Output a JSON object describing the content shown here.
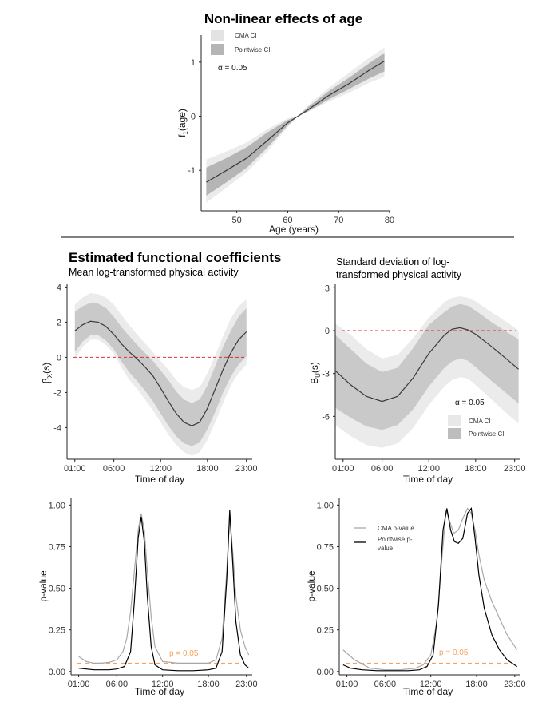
{
  "figure": {
    "main_title": "Non-linear effects of age",
    "section_title": "Estimated functional coefficients",
    "colors": {
      "cma_band": "#ebebeb",
      "pointwise_band": "#c9c9c9",
      "pointwise_band_top": "#b5b5b5",
      "estimate_line": "#3a3a3a",
      "zero_line": "#e03030",
      "alpha_line": "#f4a460",
      "cma_pvalue": "#a8a8a8",
      "pointwise_pvalue": "#000000"
    }
  },
  "chart_data": [
    {
      "id": "age",
      "type": "line",
      "title": "Non-linear effects of age",
      "xlabel": "Age (years)",
      "ylabel": "f1(age)",
      "ylabel_main": "f",
      "ylabel_sub": "1",
      "ylabel_rest": "(age)",
      "xlim": [
        43,
        80
      ],
      "ylim": [
        -1.75,
        1.5
      ],
      "xticks": [
        "50",
        "60",
        "70",
        "80"
      ],
      "yticks": [
        "-1",
        "0",
        "1"
      ],
      "x": [
        44,
        48,
        52,
        56,
        60,
        62,
        64,
        68,
        72,
        76,
        79
      ],
      "estimate": [
        -1.22,
        -1.0,
        -0.77,
        -0.45,
        -0.12,
        0.0,
        0.12,
        0.38,
        0.6,
        0.85,
        1.02
      ],
      "cma_lower": [
        -1.6,
        -1.32,
        -1.03,
        -0.65,
        -0.2,
        0.0,
        0.08,
        0.27,
        0.43,
        0.62,
        0.73
      ],
      "cma_upper": [
        -0.8,
        -0.65,
        -0.48,
        -0.24,
        -0.04,
        0.0,
        0.2,
        0.52,
        0.8,
        1.08,
        1.27
      ],
      "pw_lower": [
        -1.47,
        -1.22,
        -0.95,
        -0.58,
        -0.17,
        0.0,
        0.09,
        0.31,
        0.5,
        0.7,
        0.83
      ],
      "pw_upper": [
        -0.95,
        -0.77,
        -0.57,
        -0.3,
        -0.07,
        0.0,
        0.17,
        0.46,
        0.71,
        0.98,
        1.17
      ],
      "legend": [
        "CMA CI",
        "Pointwise CI"
      ],
      "alpha_label": "α = 0.05",
      "legend_position": "top-left"
    },
    {
      "id": "beta",
      "type": "line",
      "subtitle": "Mean log-transformed physical activity",
      "xlabel": "Time of day",
      "ylabel": "βX(s)",
      "ylabel_main": "β",
      "ylabel_sub": "X",
      "ylabel_rest": "(s)",
      "xlim": [
        0,
        23.75
      ],
      "ylim": [
        -5.8,
        4.2
      ],
      "xticks": [
        "01:00",
        "06:00",
        "12:00",
        "18:00",
        "23:00"
      ],
      "yticks": [
        "-4",
        "-2",
        "0",
        "2",
        "4"
      ],
      "x": [
        1,
        2,
        3,
        4,
        5,
        6,
        7,
        8,
        9,
        10,
        11,
        12,
        13,
        14,
        15,
        16,
        17,
        18,
        19,
        20,
        21,
        22,
        23
      ],
      "estimate": [
        1.5,
        1.85,
        2.05,
        2.0,
        1.75,
        1.3,
        0.75,
        0.3,
        -0.1,
        -0.55,
        -1.05,
        -1.75,
        -2.5,
        -3.2,
        -3.7,
        -3.9,
        -3.7,
        -2.9,
        -1.8,
        -0.7,
        0.25,
        1.0,
        1.45
      ],
      "cma_lower": [
        -0.1,
        0.6,
        1.0,
        1.0,
        0.7,
        0.2,
        -0.6,
        -1.3,
        -1.8,
        -2.4,
        -3.0,
        -3.7,
        -4.4,
        -5.0,
        -5.4,
        -5.6,
        -5.4,
        -4.7,
        -3.7,
        -2.6,
        -1.6,
        -0.9,
        -0.4
      ],
      "cma_upper": [
        3.0,
        3.4,
        3.65,
        3.6,
        3.4,
        3.0,
        2.4,
        1.8,
        1.3,
        0.8,
        0.3,
        -0.2,
        -0.7,
        -1.3,
        -1.7,
        -1.85,
        -1.7,
        -0.9,
        0.1,
        1.2,
        2.2,
        2.9,
        3.3
      ],
      "pw_lower": [
        0.3,
        0.9,
        1.25,
        1.25,
        0.95,
        0.45,
        -0.25,
        -0.85,
        -1.35,
        -1.9,
        -2.5,
        -3.2,
        -3.9,
        -4.5,
        -4.9,
        -5.05,
        -4.85,
        -4.1,
        -3.1,
        -2.0,
        -1.1,
        -0.4,
        0.05
      ],
      "pw_upper": [
        2.6,
        2.9,
        3.1,
        3.05,
        2.8,
        2.3,
        1.7,
        1.2,
        0.7,
        0.25,
        -0.2,
        -0.75,
        -1.3,
        -1.95,
        -2.4,
        -2.6,
        -2.4,
        -1.6,
        -0.5,
        0.6,
        1.5,
        2.3,
        2.8
      ],
      "zero_line": 0
    },
    {
      "id": "sd",
      "type": "line",
      "subtitle_line1": "Standard deviation of log-",
      "subtitle_line2": "transformed physical activity",
      "xlabel": "Time of day",
      "ylabel": "BU(s)",
      "ylabel_main": "B",
      "ylabel_sub": "U",
      "ylabel_rest": "(s)",
      "xlim": [
        0,
        23.75
      ],
      "ylim": [
        -9.0,
        3.3
      ],
      "xticks": [
        "01:00",
        "06:00",
        "12:00",
        "18:00",
        "23:00"
      ],
      "yticks": [
        "-6",
        "-3",
        "0",
        "3"
      ],
      "x": [
        0,
        2,
        4,
        6,
        8,
        10,
        12,
        14,
        15,
        16,
        17,
        18,
        20,
        22,
        23.5
      ],
      "estimate": [
        -2.8,
        -3.8,
        -4.6,
        -4.95,
        -4.6,
        -3.3,
        -1.6,
        -0.3,
        0.1,
        0.2,
        0.05,
        -0.25,
        -1.1,
        -2.0,
        -2.7
      ],
      "cma_lower": [
        -6.6,
        -7.4,
        -8.0,
        -8.2,
        -7.9,
        -6.8,
        -5.2,
        -3.9,
        -3.45,
        -3.25,
        -3.35,
        -3.8,
        -4.8,
        -5.8,
        -6.5
      ],
      "cma_upper": [
        0.5,
        -0.3,
        -1.3,
        -1.95,
        -1.7,
        -0.5,
        0.9,
        2.0,
        2.3,
        2.4,
        2.3,
        2.05,
        1.3,
        0.6,
        0.0
      ],
      "pw_lower": [
        -5.4,
        -6.1,
        -6.7,
        -6.95,
        -6.6,
        -5.5,
        -3.9,
        -2.6,
        -2.15,
        -1.95,
        -2.1,
        -2.55,
        -3.5,
        -4.4,
        -5.1
      ],
      "pw_upper": [
        -0.3,
        -1.3,
        -2.3,
        -2.9,
        -2.6,
        -1.2,
        0.4,
        1.3,
        1.7,
        1.85,
        1.75,
        1.4,
        0.6,
        -0.1,
        -0.6
      ],
      "zero_line": 0,
      "legend": [
        "CMA CI",
        "Pointwise CI"
      ],
      "alpha_label": "α = 0.05",
      "legend_position": "bottom-right"
    },
    {
      "id": "pval_beta",
      "type": "line",
      "xlabel": "Time of day",
      "ylabel": "p-value",
      "xlim": [
        0,
        23.75
      ],
      "ylim": [
        -0.02,
        1.04
      ],
      "xticks": [
        "01:00",
        "06:00",
        "12:00",
        "18:00",
        "23:00"
      ],
      "yticks": [
        "0.00",
        "0.25",
        "0.50",
        "0.75",
        "1.00"
      ],
      "series": [
        {
          "name": "CMA p-value",
          "x": [
            1,
            2,
            3,
            4,
            5,
            6,
            6.8,
            7.3,
            7.8,
            8.3,
            8.8,
            9.2,
            9.6,
            10.0,
            10.5,
            11,
            12,
            14,
            16,
            18,
            19,
            19.8,
            20.4,
            20.8,
            21.2,
            21.6,
            22.2,
            22.8,
            23.3
          ],
          "values": [
            0.09,
            0.06,
            0.05,
            0.05,
            0.055,
            0.07,
            0.12,
            0.2,
            0.36,
            0.6,
            0.85,
            0.95,
            0.85,
            0.6,
            0.33,
            0.15,
            0.06,
            0.05,
            0.05,
            0.05,
            0.07,
            0.2,
            0.6,
            0.93,
            0.72,
            0.45,
            0.25,
            0.15,
            0.1
          ]
        },
        {
          "name": "Pointwise p-value",
          "x": [
            1,
            2,
            3,
            4,
            5,
            6,
            7,
            7.8,
            8.3,
            8.8,
            9.2,
            9.6,
            10.0,
            10.5,
            11,
            12,
            14,
            16,
            18,
            19,
            19.8,
            20.4,
            20.8,
            21.2,
            21.6,
            22.2,
            22.8,
            23.3
          ],
          "values": [
            0.02,
            0.015,
            0.01,
            0.01,
            0.01,
            0.015,
            0.03,
            0.12,
            0.42,
            0.8,
            0.93,
            0.78,
            0.45,
            0.15,
            0.04,
            0.01,
            0.005,
            0.005,
            0.01,
            0.02,
            0.12,
            0.55,
            0.97,
            0.65,
            0.3,
            0.1,
            0.04,
            0.02
          ]
        }
      ],
      "alpha_line": 0.05,
      "alpha_label": "p = 0.05"
    },
    {
      "id": "pval_sd",
      "type": "line",
      "xlabel": "Time of day",
      "ylabel": "p-value",
      "xlim": [
        0,
        23.75
      ],
      "ylim": [
        -0.02,
        1.04
      ],
      "xticks": [
        "01:00",
        "06:00",
        "12:00",
        "18:00",
        "23:00"
      ],
      "yticks": [
        "0.00",
        "0.25",
        "0.50",
        "0.75",
        "1.00"
      ],
      "series": [
        {
          "name": "CMA p-value",
          "x": [
            0.5,
            2,
            4,
            6,
            8,
            10,
            11,
            12,
            12.8,
            13.5,
            14,
            14.5,
            15,
            15.6,
            16.2,
            16.8,
            17.3,
            17.8,
            18.3,
            19,
            20,
            21,
            22,
            23.3
          ],
          "values": [
            0.13,
            0.07,
            0.02,
            0.01,
            0.01,
            0.02,
            0.04,
            0.1,
            0.3,
            0.7,
            0.97,
            0.9,
            0.83,
            0.85,
            0.92,
            0.98,
            0.95,
            0.85,
            0.7,
            0.55,
            0.42,
            0.32,
            0.22,
            0.13
          ]
        },
        {
          "name": "Pointwise p-value",
          "x": [
            0.5,
            1.5,
            3,
            5,
            7,
            9,
            10.5,
            11.5,
            12.3,
            13,
            13.6,
            14.1,
            14.6,
            15.1,
            15.6,
            16.2,
            16.8,
            17.3,
            17.8,
            18.3,
            19,
            20,
            21,
            22,
            23.3
          ],
          "values": [
            0.04,
            0.02,
            0.01,
            0.005,
            0.005,
            0.005,
            0.01,
            0.03,
            0.1,
            0.4,
            0.85,
            0.98,
            0.85,
            0.78,
            0.77,
            0.8,
            0.95,
            0.98,
            0.8,
            0.58,
            0.38,
            0.22,
            0.13,
            0.07,
            0.03
          ]
        }
      ],
      "alpha_line": 0.05,
      "alpha_label": "p = 0.05",
      "legend": [
        "CMA p-value",
        "Pointwise p-",
        "value"
      ],
      "legend_position": "top-left"
    }
  ]
}
